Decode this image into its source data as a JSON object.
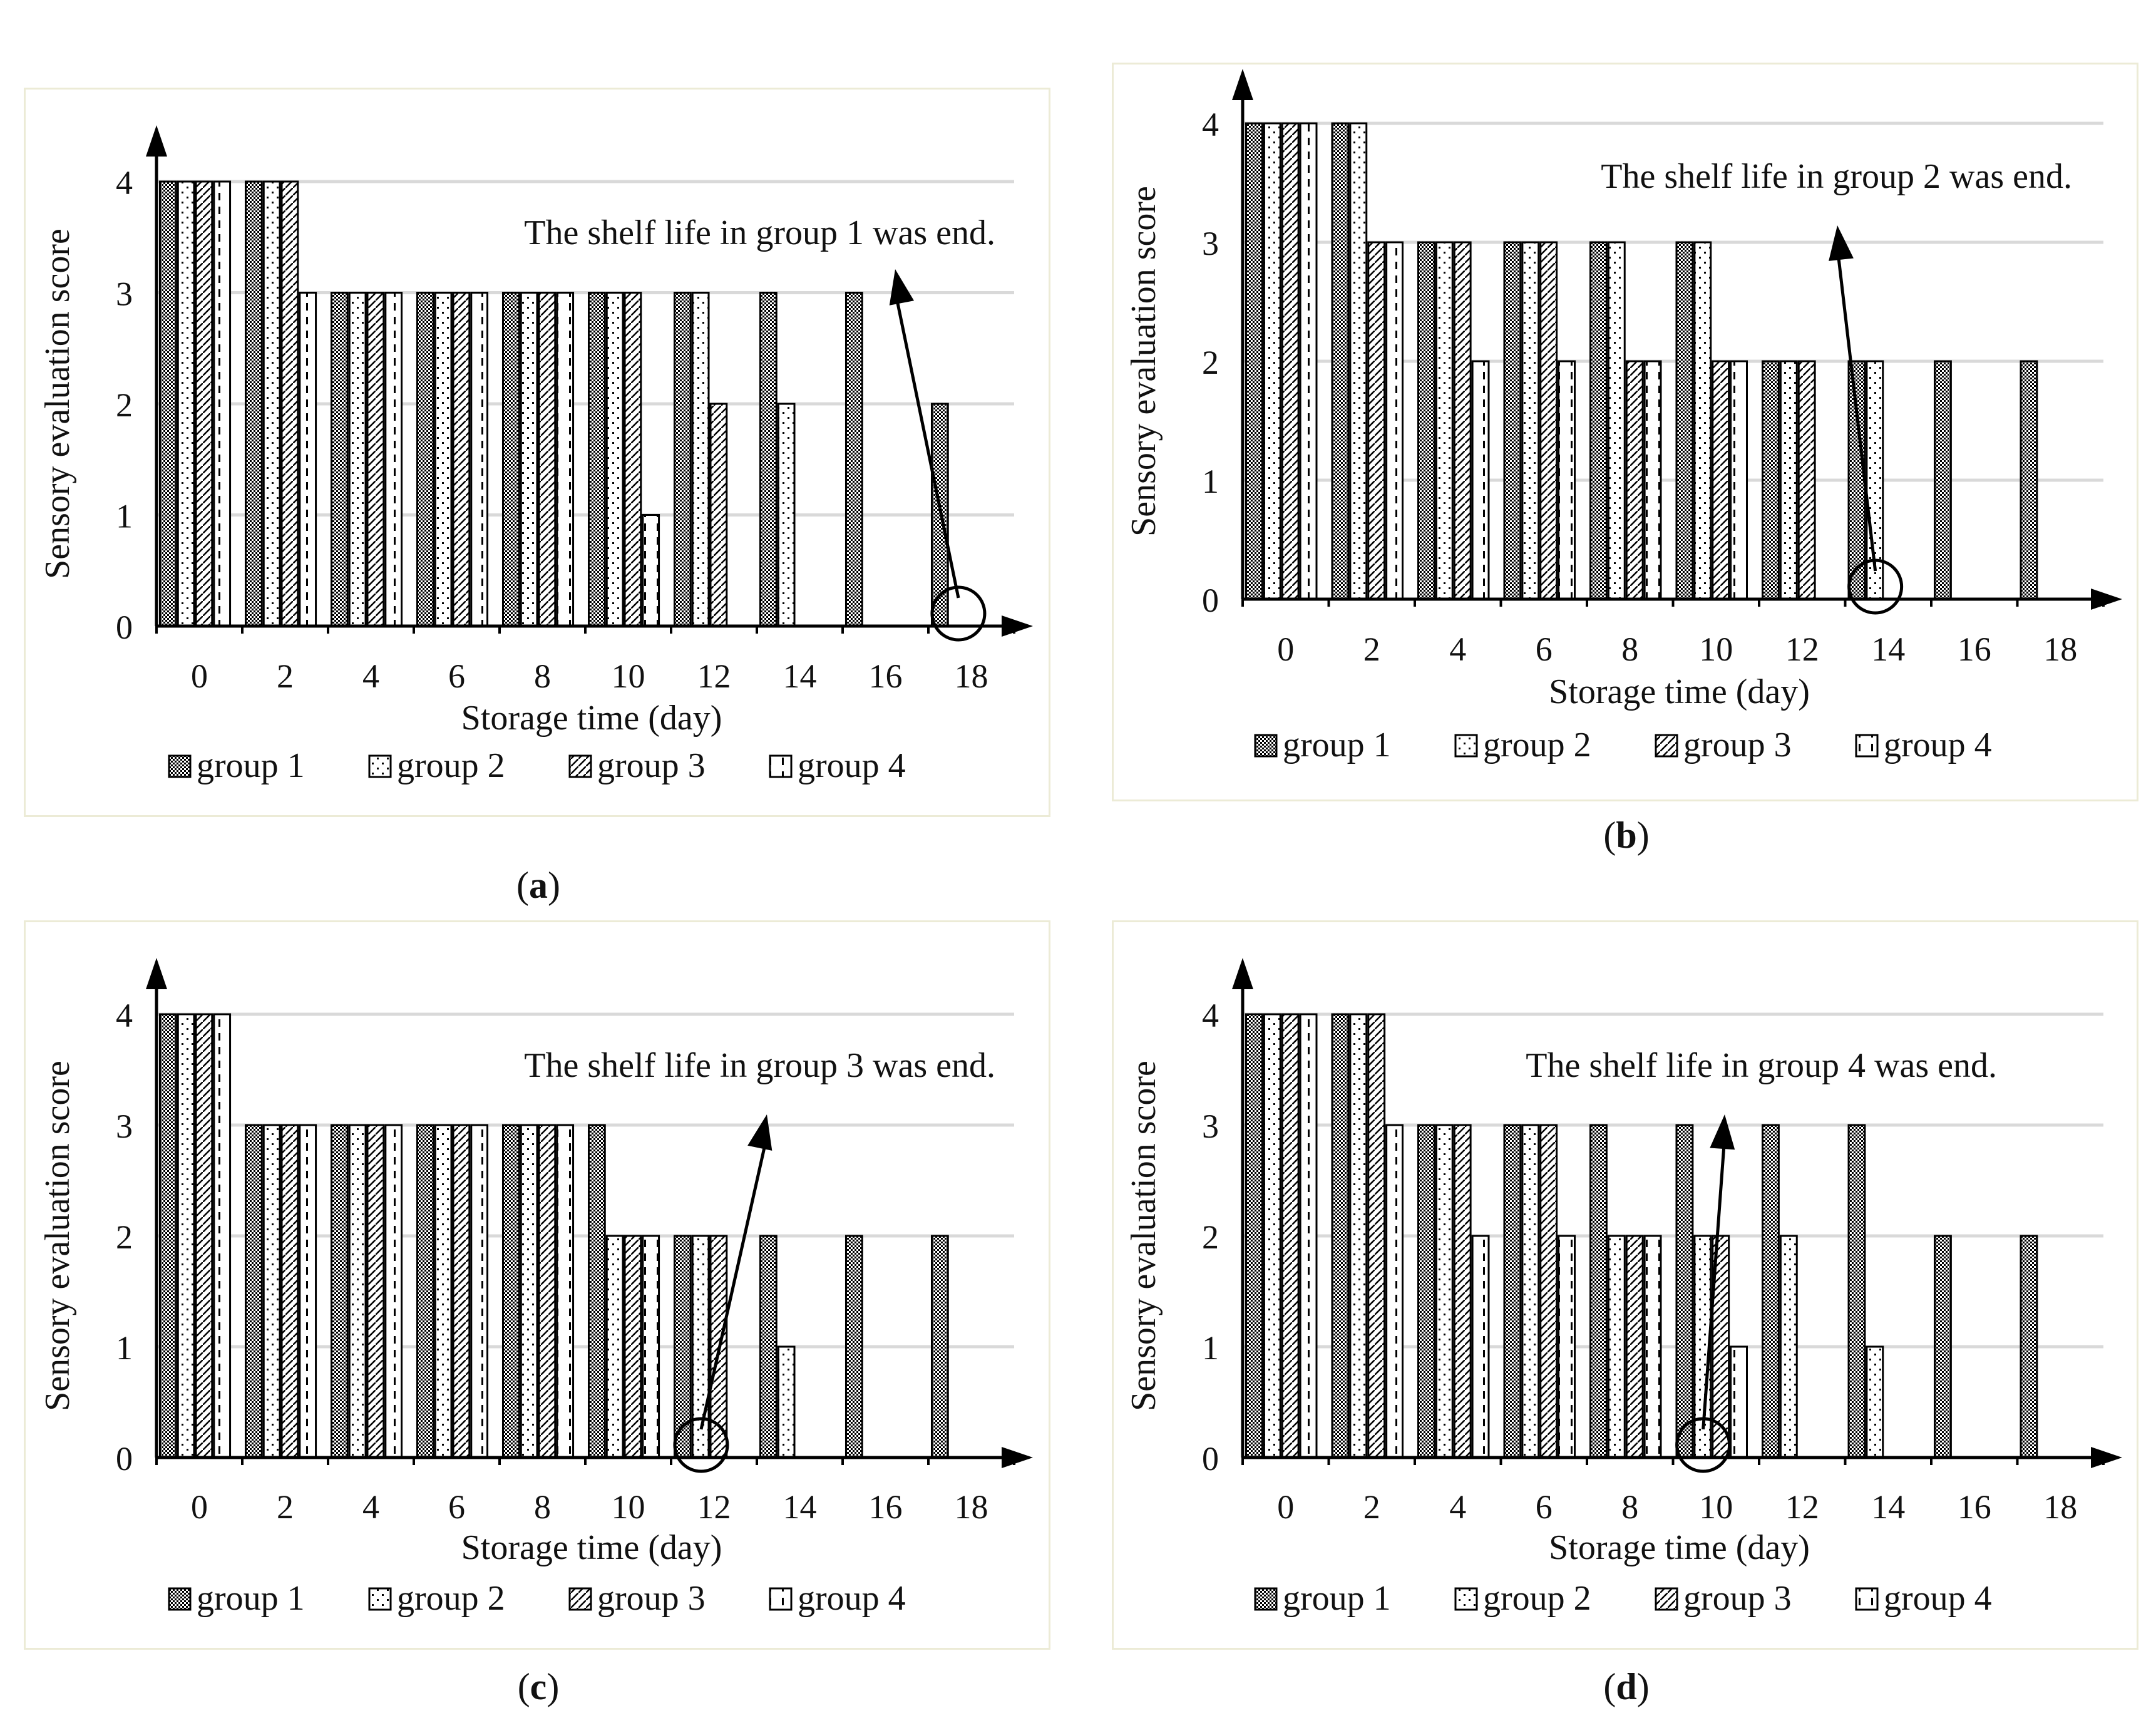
{
  "colors": {
    "frame": "#ecebd6",
    "grid": "#d9d9d9",
    "axis": "#000000",
    "bar_stroke": "#000000"
  },
  "legend_items": [
    "group 1",
    "group 2",
    "group 3",
    "group 4"
  ],
  "chart_data": [
    {
      "panel": "a",
      "type": "bar",
      "ylabel": "Sensory evaluation score",
      "xlabel": "Storage time (day)",
      "categories": [
        "0",
        "2",
        "4",
        "6",
        "8",
        "10",
        "12",
        "14",
        "16",
        "18"
      ],
      "ylim": [
        0,
        4
      ],
      "yticks": [
        "0",
        "1",
        "2",
        "3",
        "4"
      ],
      "series": [
        {
          "name": "group 1",
          "values": [
            4,
            4,
            3,
            3,
            3,
            3,
            3,
            3,
            3,
            2
          ]
        },
        {
          "name": "group 2",
          "values": [
            4,
            4,
            3,
            3,
            3,
            3,
            3,
            2,
            null,
            null
          ]
        },
        {
          "name": "group 3",
          "values": [
            4,
            4,
            3,
            3,
            3,
            3,
            2,
            null,
            null,
            null
          ]
        },
        {
          "name": "group 4",
          "values": [
            4,
            3,
            3,
            3,
            3,
            1,
            null,
            null,
            null,
            null
          ]
        }
      ],
      "annotation": "The shelf life in group 1 was end.",
      "circle_at_category": "18",
      "caption_prefix": "(",
      "caption_letter": "a",
      "caption_suffix": ")"
    },
    {
      "panel": "b",
      "type": "bar",
      "ylabel": "Sensory evaluation score",
      "xlabel": "Storage time (day)",
      "categories": [
        "0",
        "2",
        "4",
        "6",
        "8",
        "10",
        "12",
        "14",
        "16",
        "18"
      ],
      "ylim": [
        0,
        4
      ],
      "yticks": [
        "0",
        "1",
        "2",
        "3",
        "4"
      ],
      "series": [
        {
          "name": "group 1",
          "values": [
            4,
            4,
            3,
            3,
            3,
            3,
            2,
            2,
            2,
            2
          ]
        },
        {
          "name": "group 2",
          "values": [
            4,
            4,
            3,
            3,
            3,
            3,
            2,
            2,
            null,
            null
          ]
        },
        {
          "name": "group 3",
          "values": [
            4,
            3,
            3,
            3,
            2,
            2,
            2,
            null,
            null,
            null
          ]
        },
        {
          "name": "group 4",
          "values": [
            4,
            3,
            2,
            2,
            2,
            2,
            null,
            null,
            null,
            null
          ]
        }
      ],
      "annotation": "The shelf life in group 2 was end.",
      "circle_at_category": "14",
      "caption_prefix": "(",
      "caption_letter": "b",
      "caption_suffix": ")"
    },
    {
      "panel": "c",
      "type": "bar",
      "ylabel": "Sensory evaluation score",
      "xlabel": "Storage time (day)",
      "categories": [
        "0",
        "2",
        "4",
        "6",
        "8",
        "10",
        "12",
        "14",
        "16",
        "18"
      ],
      "ylim": [
        0,
        4
      ],
      "yticks": [
        "0",
        "1",
        "2",
        "3",
        "4"
      ],
      "series": [
        {
          "name": "group 1",
          "values": [
            4,
            3,
            3,
            3,
            3,
            3,
            2,
            2,
            2,
            2
          ]
        },
        {
          "name": "group 2",
          "values": [
            4,
            3,
            3,
            3,
            3,
            2,
            2,
            1,
            null,
            null
          ]
        },
        {
          "name": "group 3",
          "values": [
            4,
            3,
            3,
            3,
            3,
            2,
            2,
            null,
            null,
            null
          ]
        },
        {
          "name": "group 4",
          "values": [
            4,
            3,
            3,
            3,
            3,
            2,
            null,
            null,
            null,
            null
          ]
        }
      ],
      "annotation": "The shelf life in group 3 was end.",
      "circle_at_category": "12",
      "caption_prefix": "(",
      "caption_letter": "c",
      "caption_suffix": ")"
    },
    {
      "panel": "d",
      "type": "bar",
      "ylabel": "Sensory evaluation score",
      "xlabel": "Storage time (day)",
      "categories": [
        "0",
        "2",
        "4",
        "6",
        "8",
        "10",
        "12",
        "14",
        "16",
        "18"
      ],
      "ylim": [
        0,
        4
      ],
      "yticks": [
        "0",
        "1",
        "2",
        "3",
        "4"
      ],
      "series": [
        {
          "name": "group 1",
          "values": [
            4,
            4,
            3,
            3,
            3,
            3,
            3,
            3,
            2,
            2
          ]
        },
        {
          "name": "group 2",
          "values": [
            4,
            4,
            3,
            3,
            2,
            2,
            2,
            1,
            null,
            null
          ]
        },
        {
          "name": "group 3",
          "values": [
            4,
            4,
            3,
            3,
            2,
            2,
            null,
            null,
            null,
            null
          ]
        },
        {
          "name": "group 4",
          "values": [
            4,
            3,
            2,
            2,
            2,
            1,
            null,
            null,
            null,
            null
          ]
        }
      ],
      "annotation": "The shelf life in group 4 was end.",
      "circle_at_category": "10",
      "caption_prefix": "(",
      "caption_letter": "d",
      "caption_suffix": ")"
    }
  ]
}
